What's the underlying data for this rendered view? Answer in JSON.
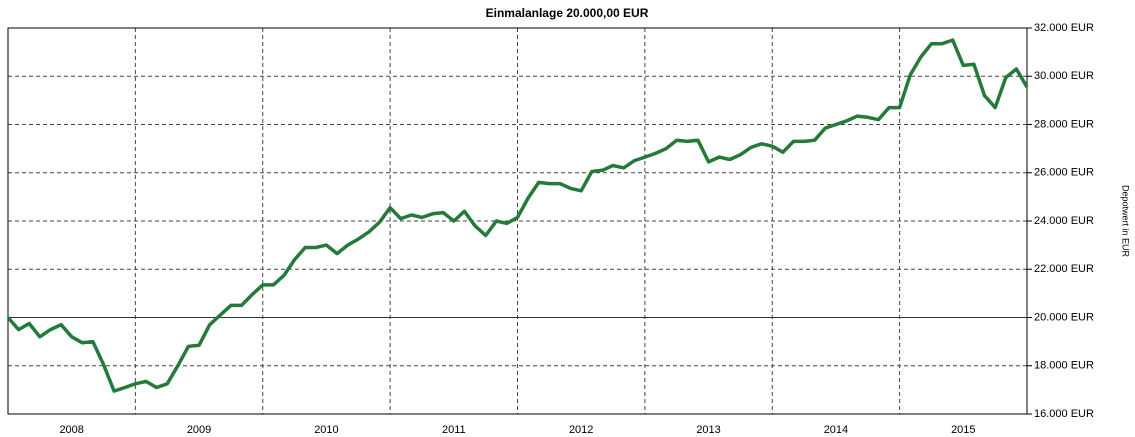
{
  "chart_data": {
    "type": "line",
    "title": "Einmalanlage 20.000,00 EUR",
    "y_axis_label": "Depotwert in EUR",
    "year_labels": [
      2008,
      2009,
      2010,
      2011,
      2012,
      2013,
      2014,
      2015
    ],
    "ylim": [
      16000,
      32000
    ],
    "yticks": [
      {
        "value": 16000,
        "label": "16.000 EUR"
      },
      {
        "value": 18000,
        "label": "18.000 EUR"
      },
      {
        "value": 20000,
        "label": "20.000 EUR"
      },
      {
        "value": 22000,
        "label": "22.000 EUR"
      },
      {
        "value": 24000,
        "label": "24.000 EUR"
      },
      {
        "value": 26000,
        "label": "26.000 EUR"
      },
      {
        "value": 28000,
        "label": "28.000 EUR"
      },
      {
        "value": 30000,
        "label": "30.000 EUR"
      },
      {
        "value": 32000,
        "label": "32.000 EUR"
      }
    ],
    "reference_line": 20000,
    "grid": true,
    "color": "#237a3b",
    "values": [
      20000,
      19500,
      19750,
      19200,
      19500,
      19700,
      19200,
      18950,
      19000,
      18050,
      16950,
      17100,
      17250,
      17350,
      17100,
      17250,
      18000,
      18800,
      18850,
      19700,
      20100,
      20500,
      20500,
      20950,
      21350,
      21350,
      21750,
      22400,
      22900,
      22900,
      23000,
      22650,
      23000,
      23250,
      23550,
      23950,
      24550,
      24100,
      24250,
      24150,
      24300,
      24350,
      24000,
      24400,
      23800,
      23400,
      24000,
      23900,
      24150,
      24950,
      25600,
      25550,
      25550,
      25350,
      25250,
      26050,
      26100,
      26300,
      26200,
      26500,
      26650,
      26800,
      27000,
      27350,
      27300,
      27350,
      26450,
      26650,
      26550,
      26750,
      27050,
      27200,
      27100,
      26850,
      27300,
      27300,
      27350,
      27850,
      28000,
      28150,
      28350,
      28300,
      28200,
      28700,
      28700,
      30050,
      30800,
      31350,
      31350,
      31500,
      30450,
      30500,
      29200,
      28700,
      29950,
      30300,
      29550
    ]
  }
}
